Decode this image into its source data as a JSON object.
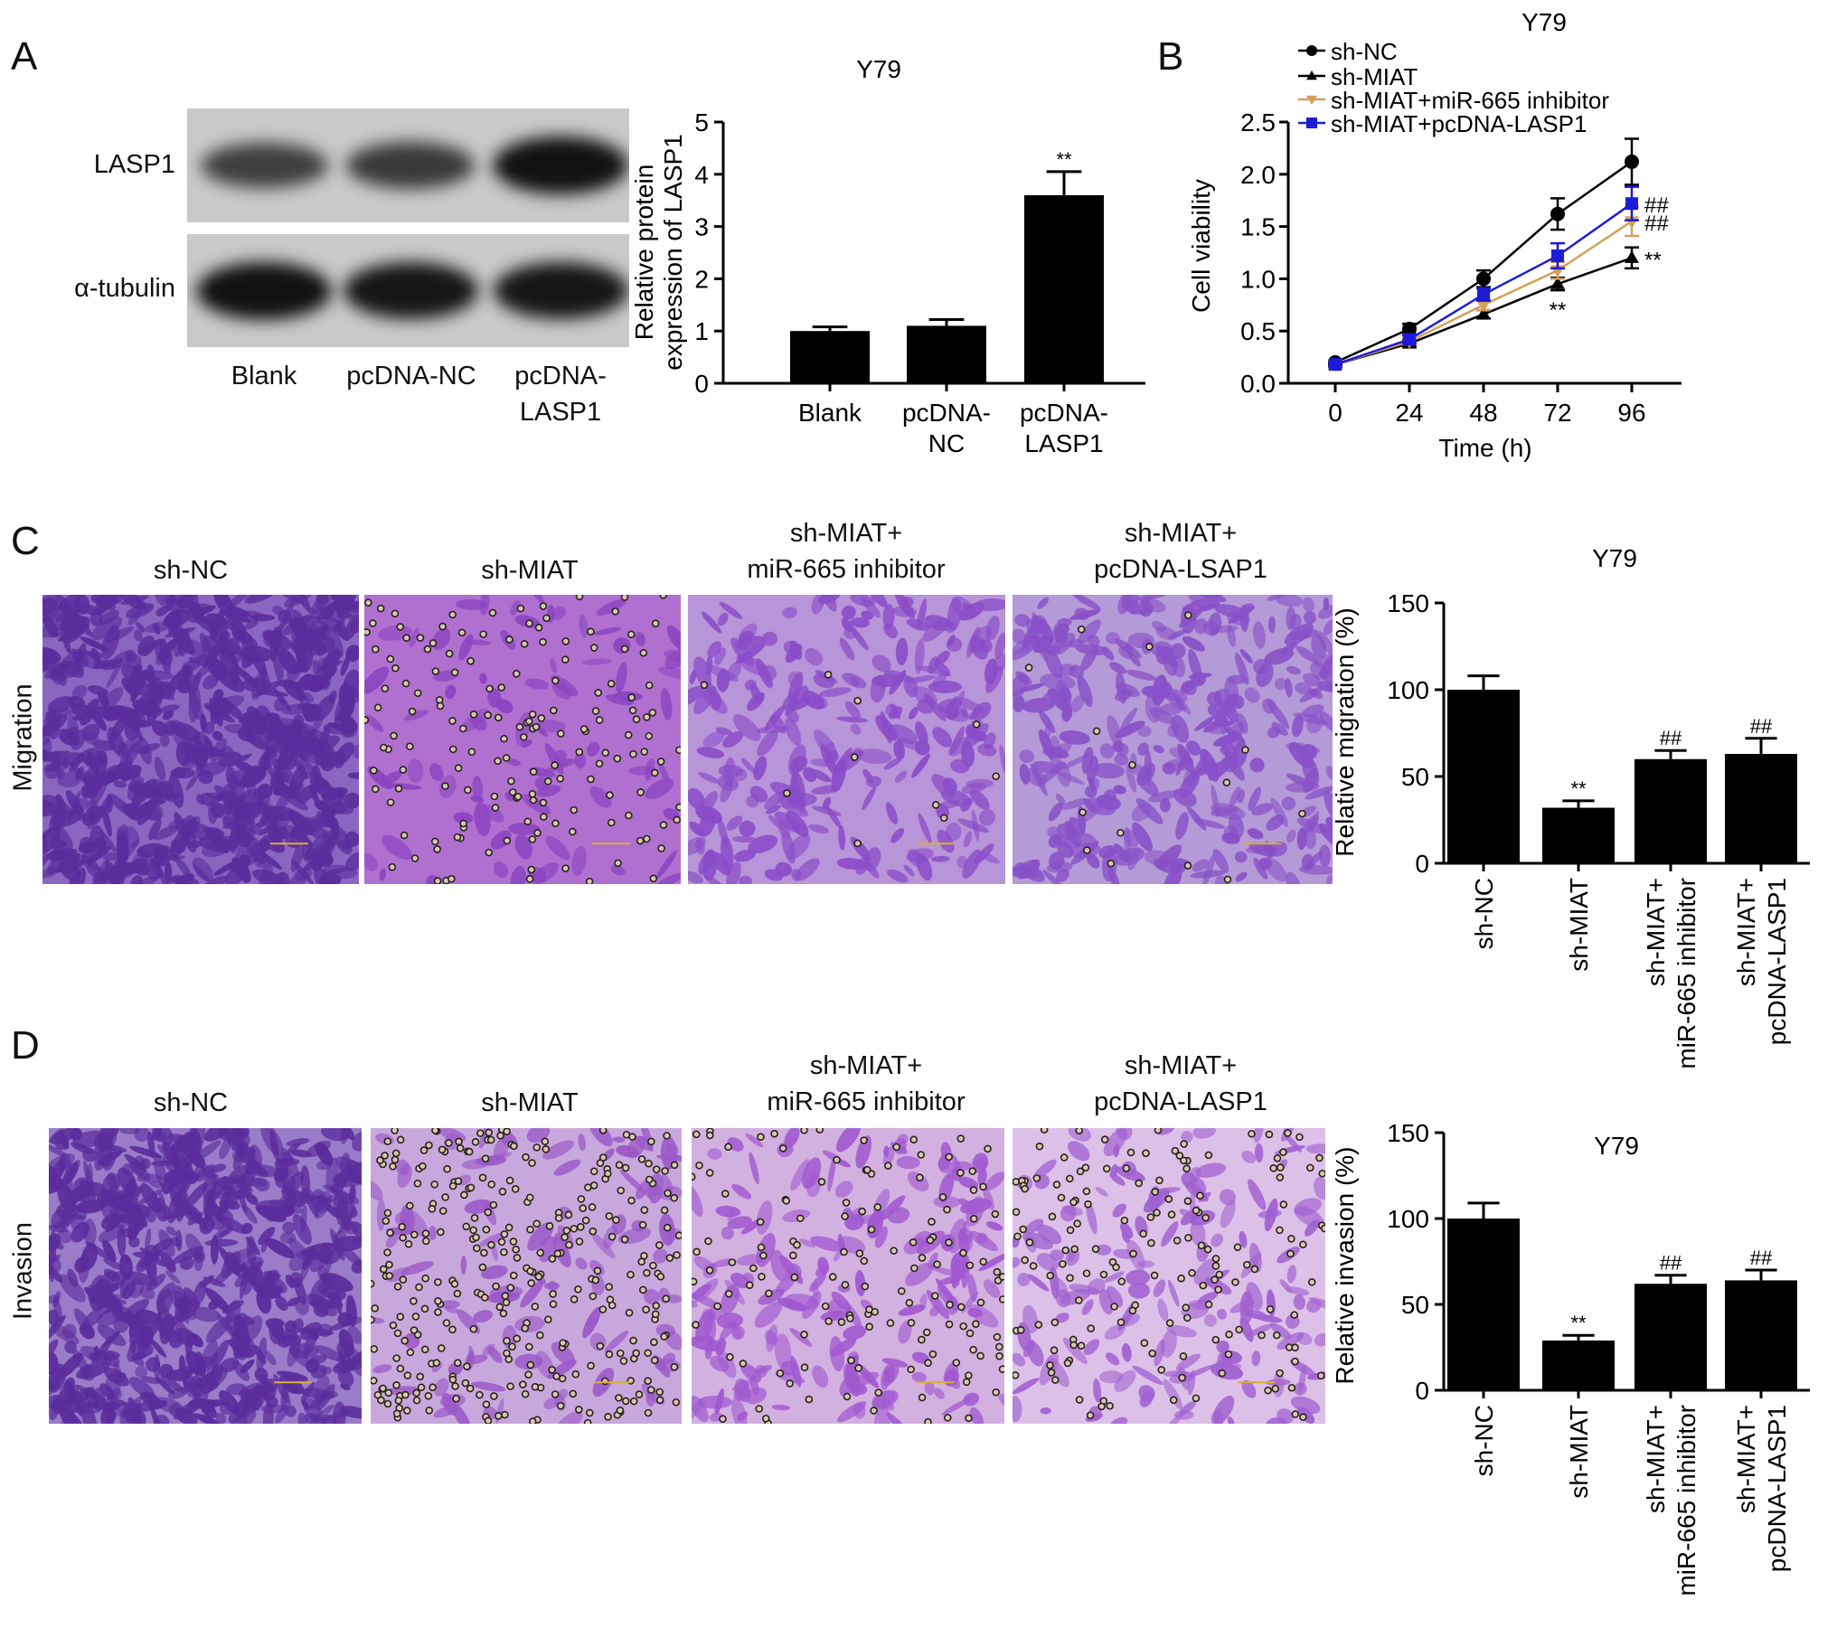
{
  "panel_letters": {
    "a": "A",
    "b": "B",
    "c": "C",
    "d": "D"
  },
  "panel_a": {
    "blot_rows": [
      "LASP1",
      "α-tubulin"
    ],
    "blot_lanes": [
      [
        "Blank"
      ],
      [
        "pcDNA-NC"
      ],
      [
        "pcDNA-",
        "LASP1"
      ]
    ],
    "band_intensity": {
      "LASP1": [
        0.55,
        0.6,
        1.0
      ],
      "alpha_tubulin": [
        1.0,
        0.95,
        0.95
      ]
    }
  },
  "panel_c": {
    "row_label": "Migration",
    "columns": [
      [
        "sh-NC"
      ],
      [
        "sh-MIAT"
      ],
      [
        "sh-MIAT+",
        "miR-665 inhibitor"
      ],
      [
        "sh-MIAT+",
        "pcDNA-LSAP1"
      ]
    ]
  },
  "panel_d": {
    "row_label": "Invasion",
    "columns": [
      [
        "sh-NC"
      ],
      [
        "sh-MIAT"
      ],
      [
        "sh-MIAT+",
        "miR-665 inhibitor"
      ],
      [
        "sh-MIAT+",
        "pcDNA-LASP1"
      ]
    ]
  },
  "chart_data": [
    {
      "id": "A",
      "type": "bar",
      "title": "Y79",
      "ylabel": [
        "Relative protein",
        "expression of LASP1"
      ],
      "categories": [
        [
          "Blank"
        ],
        [
          "pcDNA-",
          "NC"
        ],
        [
          "pcDNA-",
          "LASP1"
        ]
      ],
      "values": [
        1.0,
        1.1,
        3.6
      ],
      "errors": [
        0.08,
        0.12,
        0.45
      ],
      "annotations": [
        "",
        "",
        "**"
      ],
      "ylim": [
        0,
        5
      ],
      "yticks": [
        "0",
        "1",
        "2",
        "3",
        "4",
        "5"
      ]
    },
    {
      "id": "B",
      "type": "line",
      "title": "Y79",
      "xlabel": "Time (h)",
      "ylabel": "Cell viability",
      "x": [
        0,
        24,
        48,
        72,
        96
      ],
      "xticks": [
        "0",
        "24",
        "48",
        "72",
        "96"
      ],
      "ylim": [
        0,
        2.5
      ],
      "yticks": [
        "0.0",
        "0.5",
        "1.0",
        "1.5",
        "2.0",
        "2.5"
      ],
      "legend_position": "top-left",
      "series": [
        {
          "name": "sh-NC",
          "color": "#000000",
          "marker": "circle",
          "values": [
            0.2,
            0.52,
            1.0,
            1.62,
            2.12
          ],
          "errors": [
            0.02,
            0.05,
            0.08,
            0.15,
            0.22
          ]
        },
        {
          "name": "sh-MIAT",
          "color": "#000000",
          "marker": "triangle",
          "values": [
            0.18,
            0.38,
            0.66,
            0.95,
            1.2
          ],
          "errors": [
            0.02,
            0.03,
            0.04,
            0.06,
            0.1
          ]
        },
        {
          "name": "sh-MIAT+miR-665 inhibitor",
          "color": "#d4a05a",
          "marker": "triangle-down",
          "values": [
            0.18,
            0.4,
            0.75,
            1.08,
            1.55
          ],
          "errors": [
            0.02,
            0.03,
            0.05,
            0.08,
            0.14
          ]
        },
        {
          "name": "sh-MIAT+pcDNA-LASP1",
          "color": "#1c1cd8",
          "marker": "square",
          "values": [
            0.18,
            0.42,
            0.85,
            1.22,
            1.72
          ],
          "errors": [
            0.02,
            0.04,
            0.06,
            0.12,
            0.16
          ]
        }
      ],
      "annotations": [
        {
          "text": "##",
          "series": "sh-MIAT+pcDNA-LASP1",
          "x": 96,
          "y": 1.72
        },
        {
          "text": "##",
          "series": "sh-MIAT+miR-665 inhibitor",
          "x": 96,
          "y": 1.55
        },
        {
          "text": "**",
          "series": "sh-MIAT",
          "x": 96,
          "y": 1.2
        },
        {
          "text": "**",
          "series": "sh-MIAT",
          "x": 72,
          "y": 0.82
        }
      ]
    },
    {
      "id": "C",
      "type": "bar",
      "title": "Y79",
      "ylabel": "Relative migration (%)",
      "categories": [
        [
          "sh-NC"
        ],
        [
          "sh-MIAT"
        ],
        [
          "sh-MIAT+",
          "miR-665 inhibitor"
        ],
        [
          "sh-MIAT+",
          "pcDNA-LASP1"
        ]
      ],
      "values": [
        100,
        32,
        60,
        63
      ],
      "errors": [
        8,
        4,
        5,
        9
      ],
      "annotations": [
        "",
        "**",
        "##",
        "##"
      ],
      "ylim": [
        0,
        150
      ],
      "yticks": [
        "0",
        "50",
        "100",
        "150"
      ]
    },
    {
      "id": "D",
      "type": "bar",
      "title": "Y79",
      "ylabel": "Relative invasion (%)",
      "categories": [
        [
          "sh-NC"
        ],
        [
          "sh-MIAT"
        ],
        [
          "sh-MIAT+",
          "miR-665 inhibitor"
        ],
        [
          "sh-MIAT+",
          "pcDNA-LASP1"
        ]
      ],
      "values": [
        100,
        29,
        62,
        64
      ],
      "errors": [
        9,
        3,
        5,
        6
      ],
      "annotations": [
        "",
        "**",
        "##",
        "##"
      ],
      "ylim": [
        0,
        150
      ],
      "yticks": [
        "0",
        "50",
        "100",
        "150"
      ]
    }
  ]
}
